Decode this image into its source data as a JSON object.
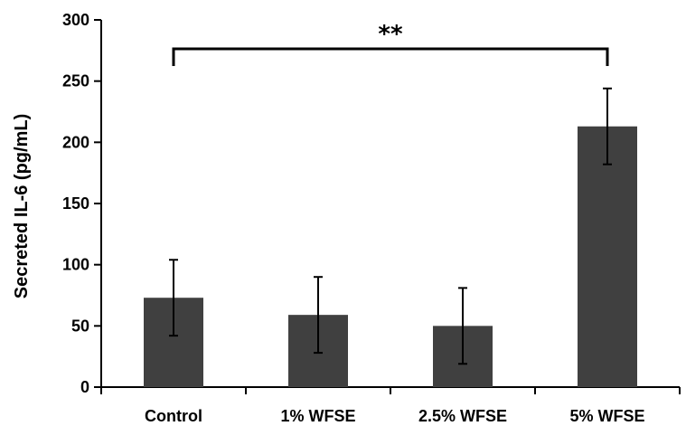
{
  "chart_data": {
    "type": "bar",
    "title": "",
    "xlabel": "",
    "ylabel": "Secreted IL-6 (pg/mL)",
    "ylim": [
      0,
      300
    ],
    "yticks": [
      0,
      50,
      100,
      150,
      200,
      250,
      300
    ],
    "categories": [
      "Control",
      "1% WFSE",
      "2.5% WFSE",
      "5% WFSE"
    ],
    "values": [
      73,
      59,
      50,
      213
    ],
    "errors": [
      31,
      31,
      31,
      31
    ],
    "bar_color": "#404040",
    "grid": false,
    "significance": {
      "from": "Control",
      "to": "5% WFSE",
      "label": "**"
    }
  }
}
